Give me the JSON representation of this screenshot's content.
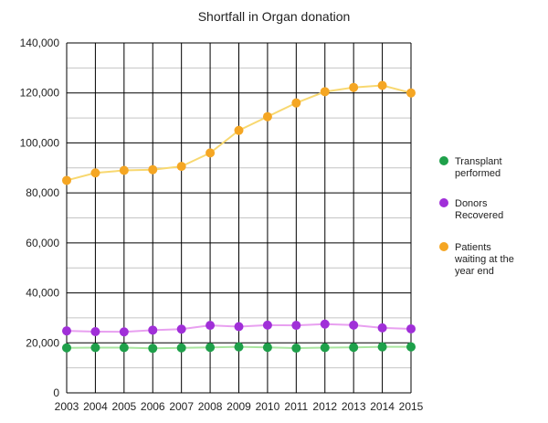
{
  "chart_data": {
    "type": "line",
    "title": "Shortfall in Organ donation",
    "xlabel": "",
    "ylabel": "",
    "x": [
      2003,
      2004,
      2005,
      2006,
      2007,
      2008,
      2009,
      2010,
      2011,
      2012,
      2013,
      2014,
      2015
    ],
    "ylim": [
      0,
      140000
    ],
    "y_ticks": [
      0,
      20000,
      40000,
      60000,
      80000,
      100000,
      120000,
      140000
    ],
    "y_tick_labels": [
      "0",
      "20,000",
      "40,000",
      "60,000",
      "80,000",
      "100,000",
      "120,000",
      "140,000"
    ],
    "x_tick_labels": [
      "2003",
      "2004",
      "2005",
      "2006",
      "2007",
      "2008",
      "2009",
      "2010",
      "2011",
      "2012",
      "2013",
      "2014",
      "2015"
    ],
    "grid": true,
    "legend_position": "right",
    "series": [
      {
        "name": "Transplant performed",
        "legend_lines": [
          "Transplant",
          "performed"
        ],
        "line_color": "#a9e6a0",
        "marker_color": "#1ea04a",
        "values": [
          18000,
          18100,
          18100,
          17800,
          18000,
          18200,
          18400,
          18200,
          17900,
          18100,
          18200,
          18400,
          18400
        ]
      },
      {
        "name": "Donors Recovered",
        "legend_lines": [
          "Donors",
          "Recovered"
        ],
        "line_color": "#e8a0f0",
        "marker_color": "#a02fd8",
        "values": [
          24800,
          24500,
          24400,
          25100,
          25500,
          27000,
          26500,
          27100,
          27000,
          27500,
          27100,
          26000,
          25600
        ]
      },
      {
        "name": "Patients waiting at the year end",
        "legend_lines": [
          "Patients",
          "waiting at the",
          "year end"
        ],
        "line_color": "#f8d870",
        "marker_color": "#f5a623",
        "values": [
          85000,
          88000,
          89000,
          89300,
          90600,
          96000,
          105000,
          110500,
          116000,
          120500,
          122200,
          123000,
          120000
        ]
      }
    ]
  }
}
